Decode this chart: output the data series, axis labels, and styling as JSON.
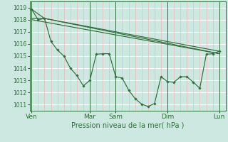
{
  "xlabel": "Pression niveau de la mer( hPa )",
  "background_color": "#cde8e0",
  "grid_color_h": "#ffffff",
  "grid_color_v": "#e8c0c0",
  "line_color": "#2d6e3a",
  "ylim": [
    1010.5,
    1019.5
  ],
  "yticks": [
    1011,
    1012,
    1013,
    1014,
    1015,
    1016,
    1017,
    1018,
    1019
  ],
  "day_labels": [
    "Ven",
    "Mar",
    "Sam",
    "Dim",
    "Lun"
  ],
  "day_positions": [
    0,
    9,
    13,
    21,
    29
  ],
  "xlim": [
    -0.3,
    30.0
  ],
  "series1_x": [
    0,
    1,
    2,
    3,
    4,
    5,
    6,
    7,
    8,
    9,
    10,
    11,
    12,
    13,
    14,
    15,
    16,
    17,
    18,
    19,
    20,
    21,
    22,
    23,
    24,
    25,
    26,
    27,
    28,
    29
  ],
  "series1_y": [
    1018.85,
    1018.0,
    1018.1,
    1016.2,
    1015.5,
    1015.0,
    1014.0,
    1013.4,
    1012.55,
    1013.0,
    1015.15,
    1015.2,
    1015.2,
    1013.3,
    1013.2,
    1012.2,
    1011.5,
    1011.05,
    1010.85,
    1011.1,
    1013.3,
    1012.9,
    1012.85,
    1013.3,
    1013.3,
    1012.85,
    1012.35,
    1015.15,
    1015.2,
    1015.4
  ],
  "series2_x": [
    0,
    29
  ],
  "series2_y": [
    1018.0,
    1015.2
  ],
  "series3_x": [
    0,
    2,
    29
  ],
  "series3_y": [
    1018.1,
    1018.1,
    1015.4
  ],
  "series4_x": [
    0,
    2,
    29
  ],
  "series4_y": [
    1018.85,
    1018.1,
    1015.2
  ],
  "xtick_minor_positions": [
    0,
    1,
    2,
    3,
    4,
    5,
    6,
    7,
    8,
    9,
    10,
    11,
    12,
    13,
    14,
    15,
    16,
    17,
    18,
    19,
    20,
    21,
    22,
    23,
    24,
    25,
    26,
    27,
    28,
    29
  ]
}
